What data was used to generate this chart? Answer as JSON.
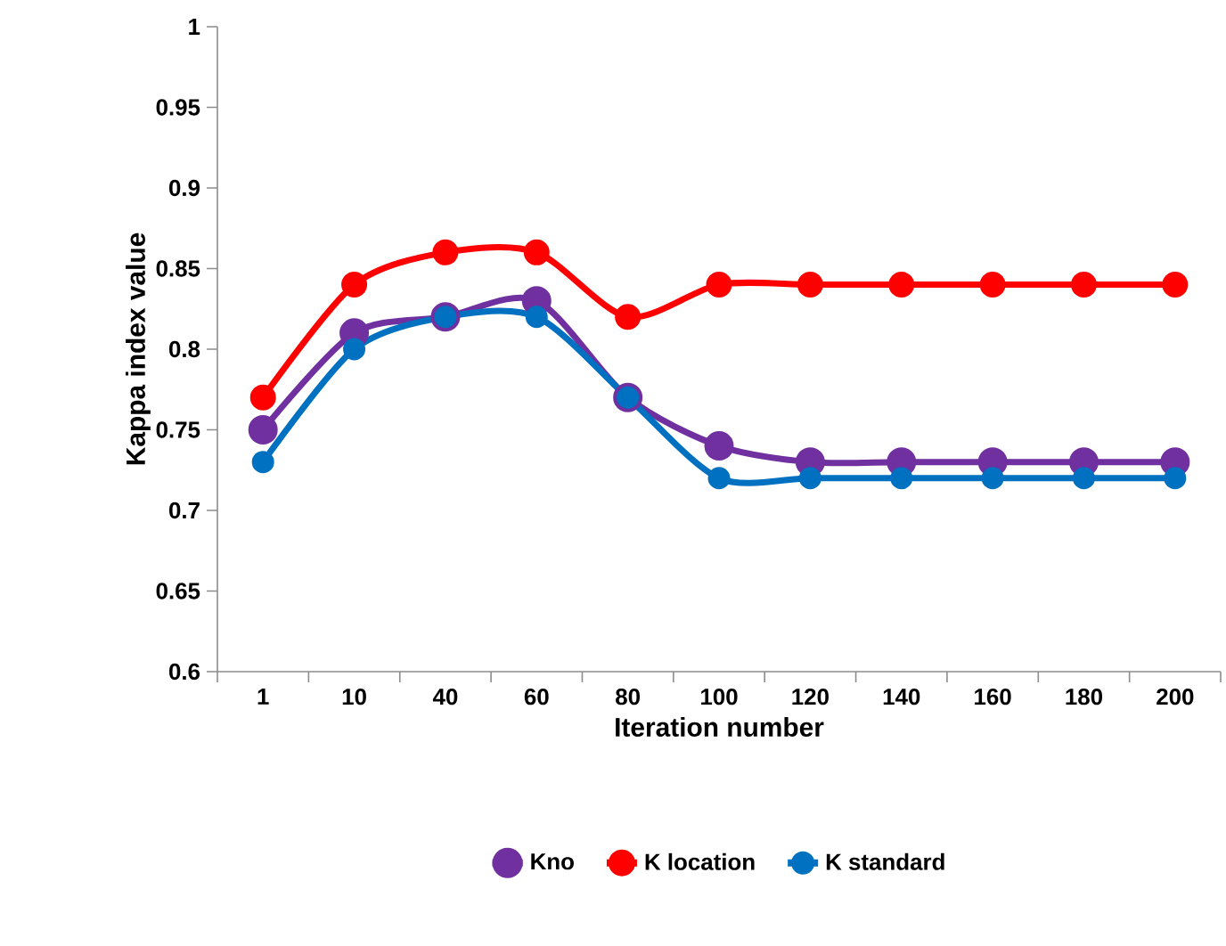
{
  "chart_data": {
    "type": "line",
    "xlabel": "Iteration number",
    "ylabel": "Kappa index value",
    "categories": [
      "1",
      "10",
      "40",
      "60",
      "80",
      "100",
      "120",
      "140",
      "160",
      "180",
      "200"
    ],
    "series": [
      {
        "name": "Kno",
        "color": "#7030a0",
        "values": [
          0.75,
          0.81,
          0.82,
          0.83,
          0.77,
          0.74,
          0.73,
          0.73,
          0.73,
          0.73,
          0.73
        ]
      },
      {
        "name": "K location",
        "color": "#ff0000",
        "values": [
          0.77,
          0.84,
          0.86,
          0.86,
          0.82,
          0.84,
          0.84,
          0.84,
          0.84,
          0.84,
          0.84
        ]
      },
      {
        "name": "K standard",
        "color": "#0070c0",
        "values": [
          0.73,
          0.8,
          0.82,
          0.82,
          0.77,
          0.72,
          0.72,
          0.72,
          0.72,
          0.72,
          0.72
        ]
      }
    ],
    "ylim": [
      0.6,
      1
    ],
    "yticks": [
      0.6,
      0.65,
      0.7,
      0.75,
      0.8,
      0.85,
      0.9,
      0.95,
      1
    ],
    "legend": "bottom",
    "marker": "circle",
    "line_style": "solid",
    "grid": false
  }
}
